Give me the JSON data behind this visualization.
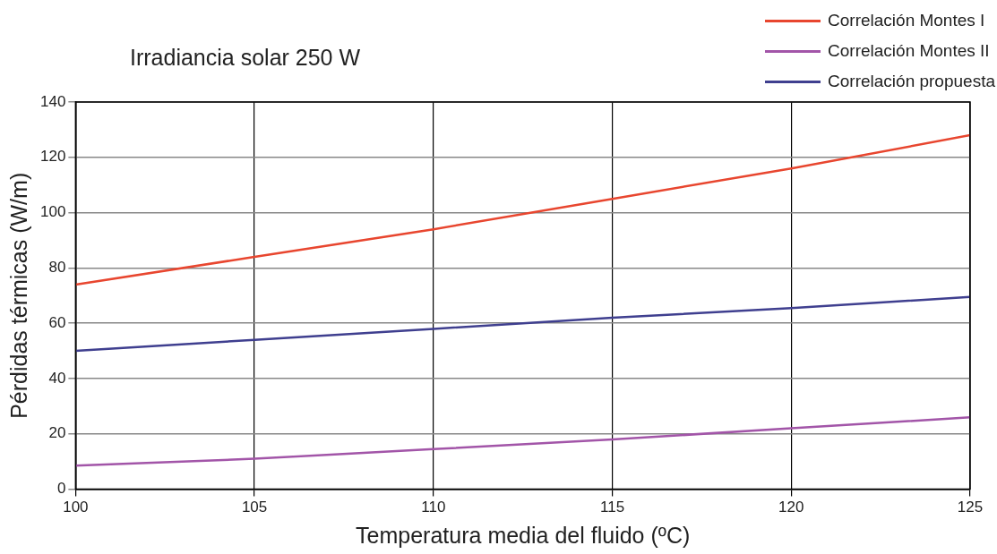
{
  "chart_data": {
    "type": "line",
    "title": "Irradiancia solar 250 W",
    "xlabel": "Temperatura media del fluido (ºC)",
    "ylabel": "Pérdidas térmicas (W/m)",
    "x": [
      100,
      105,
      110,
      115,
      120,
      125
    ],
    "series": [
      {
        "name": "Correlación Montes I",
        "color": "#e8462f",
        "values": [
          74,
          84,
          94,
          105,
          116,
          128
        ]
      },
      {
        "name": "Correlación Montes II",
        "color": "#a255a8",
        "values": [
          8.5,
          11,
          14.5,
          18,
          22,
          26
        ]
      },
      {
        "name": "Correlación propuesta",
        "color": "#3f3f8f",
        "values": [
          50,
          54,
          58,
          62,
          65.5,
          69.5
        ]
      }
    ],
    "xlim": [
      100,
      125
    ],
    "ylim": [
      0,
      140
    ],
    "xticks": [
      100,
      105,
      110,
      115,
      120,
      125
    ],
    "yticks": [
      0,
      20,
      40,
      60,
      80,
      100,
      120,
      140
    ],
    "grid": true,
    "legend": "top right",
    "marker": "none"
  }
}
